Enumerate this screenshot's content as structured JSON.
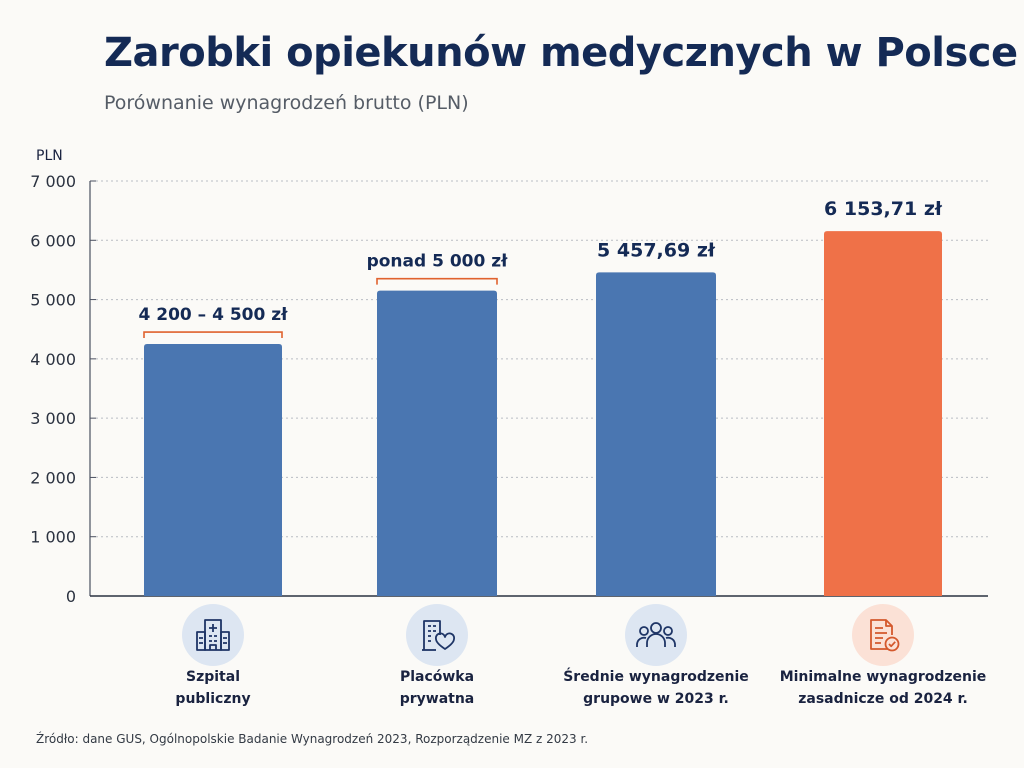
{
  "header": {
    "title": "Zarobki opiekunów medycznych w Polsce",
    "subtitle": "Porównanie wynagrodzeń brutto (PLN)"
  },
  "footer": {
    "source": "Źródło: dane GUS, Ogólnopolskie Badanie Wynagrodzeń 2023, Rozporządzenie MZ z 2023 r."
  },
  "colors": {
    "bar_blue": "#4a76b1",
    "bar_orange": "#ef7148",
    "bracket": "#e0622e",
    "icon_bg_blue": "#dde6f2",
    "icon_bg_orange": "#fbe1d6",
    "icon_stroke_blue": "#1e3566",
    "icon_stroke_orange": "#d4582c"
  },
  "chart_data": {
    "type": "bar",
    "title": "Zarobki opiekunów medycznych w Polsce",
    "subtitle": "Porównanie wynagrodzeń brutto (PLN)",
    "ylabel": "PLN",
    "xlabel": "",
    "ylim": [
      0,
      7000
    ],
    "yticks": [
      0,
      1000,
      2000,
      3000,
      4000,
      5000,
      6000,
      7000
    ],
    "ytick_labels": [
      "0",
      "1 000",
      "2 000",
      "3 000",
      "4 000",
      "5 000",
      "6 000",
      "7 000"
    ],
    "grid": true,
    "categories": [
      [
        "Szpital",
        "publiczny"
      ],
      [
        "Placówka",
        "prywatna"
      ],
      [
        "Średnie wynagrodzenie",
        "grupowe w 2023 r."
      ],
      [
        "Minimalne wynagrodzenie",
        "zasadnicze od 2024 r."
      ]
    ],
    "values": [
      4250,
      5150,
      5457.69,
      6153.71
    ],
    "data_labels": [
      "4 200 – 4 500 zł",
      "ponad 5 000 zł",
      "5 457,69 zł",
      "6 153,71 zł"
    ],
    "label_style": [
      "bracket",
      "bracket",
      "plain",
      "plain"
    ],
    "bar_colors": [
      "blue",
      "blue",
      "blue",
      "orange"
    ],
    "icons": [
      "hospital-icon",
      "clinic-heart-icon",
      "group-people-icon",
      "document-check-icon"
    ]
  }
}
